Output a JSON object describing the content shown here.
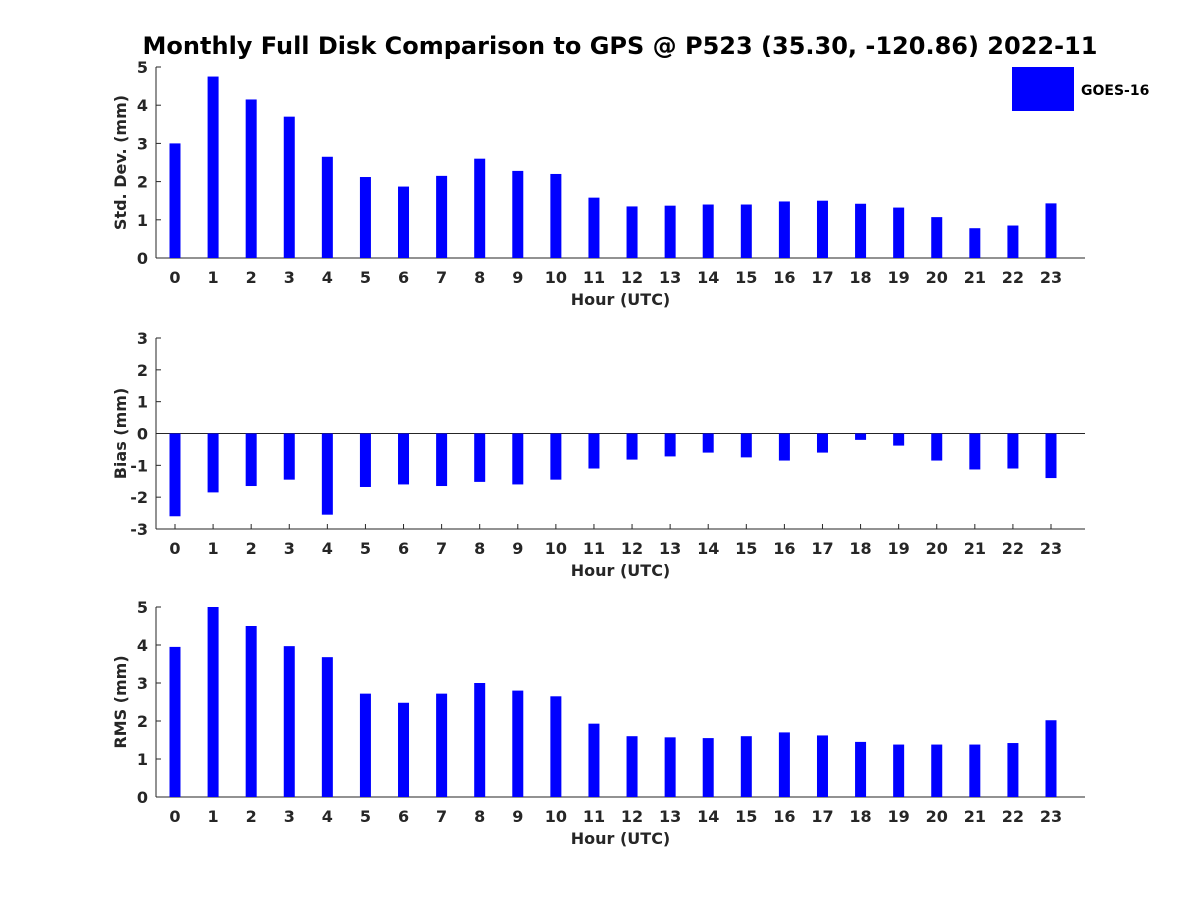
{
  "title": "Monthly Full Disk Comparison to GPS @ P523 (35.30, -120.86) 2022-11",
  "legend": {
    "label": "GOES-16",
    "placement": "top-right",
    "color": "#0000ff"
  },
  "chart_data": [
    {
      "type": "bar",
      "name": "std_dev",
      "categories": [
        "0",
        "1",
        "2",
        "3",
        "4",
        "5",
        "6",
        "7",
        "8",
        "9",
        "10",
        "11",
        "12",
        "13",
        "14",
        "15",
        "16",
        "17",
        "18",
        "19",
        "20",
        "21",
        "22",
        "23"
      ],
      "series": [
        {
          "name": "GOES-16",
          "color": "#0000ff",
          "values": [
            3.0,
            4.75,
            4.15,
            3.7,
            2.65,
            2.12,
            1.87,
            2.15,
            2.6,
            2.28,
            2.2,
            1.58,
            1.35,
            1.37,
            1.4,
            1.4,
            1.48,
            1.5,
            1.42,
            1.32,
            1.07,
            0.78,
            0.85,
            1.43
          ]
        }
      ],
      "xlabel": "Hour (UTC)",
      "ylabel": "Std. Dev. (mm)",
      "ylim": [
        0,
        5
      ],
      "yticks": [
        0,
        1,
        2,
        3,
        4,
        5
      ],
      "grid": false
    },
    {
      "type": "bar",
      "name": "bias",
      "categories": [
        "0",
        "1",
        "2",
        "3",
        "4",
        "5",
        "6",
        "7",
        "8",
        "9",
        "10",
        "11",
        "12",
        "13",
        "14",
        "15",
        "16",
        "17",
        "18",
        "19",
        "20",
        "21",
        "22",
        "23"
      ],
      "series": [
        {
          "name": "GOES-16",
          "color": "#0000ff",
          "values": [
            -2.6,
            -1.85,
            -1.65,
            -1.45,
            -2.55,
            -1.68,
            -1.6,
            -1.65,
            -1.52,
            -1.6,
            -1.45,
            -1.1,
            -0.82,
            -0.72,
            -0.6,
            -0.75,
            -0.85,
            -0.6,
            -0.2,
            -0.38,
            -0.85,
            -1.13,
            -1.1,
            -1.4
          ]
        }
      ],
      "xlabel": "Hour (UTC)",
      "ylabel": "Bias (mm)",
      "ylim": [
        -3,
        3
      ],
      "yticks": [
        -3,
        -2,
        -1,
        0,
        1,
        2,
        3
      ],
      "grid": false
    },
    {
      "type": "bar",
      "name": "rms",
      "categories": [
        "0",
        "1",
        "2",
        "3",
        "4",
        "5",
        "6",
        "7",
        "8",
        "9",
        "10",
        "11",
        "12",
        "13",
        "14",
        "15",
        "16",
        "17",
        "18",
        "19",
        "20",
        "21",
        "22",
        "23"
      ],
      "series": [
        {
          "name": "GOES-16",
          "color": "#0000ff",
          "values": [
            3.95,
            5.0,
            4.5,
            3.97,
            3.68,
            2.72,
            2.48,
            2.72,
            3.0,
            2.8,
            2.65,
            1.93,
            1.6,
            1.57,
            1.55,
            1.6,
            1.7,
            1.62,
            1.45,
            1.38,
            1.38,
            1.38,
            1.42,
            2.02
          ]
        }
      ],
      "xlabel": "Hour (UTC)",
      "ylabel": "RMS (mm)",
      "ylim": [
        0,
        5
      ],
      "yticks": [
        0,
        1,
        2,
        3,
        4,
        5
      ],
      "grid": false
    }
  ]
}
